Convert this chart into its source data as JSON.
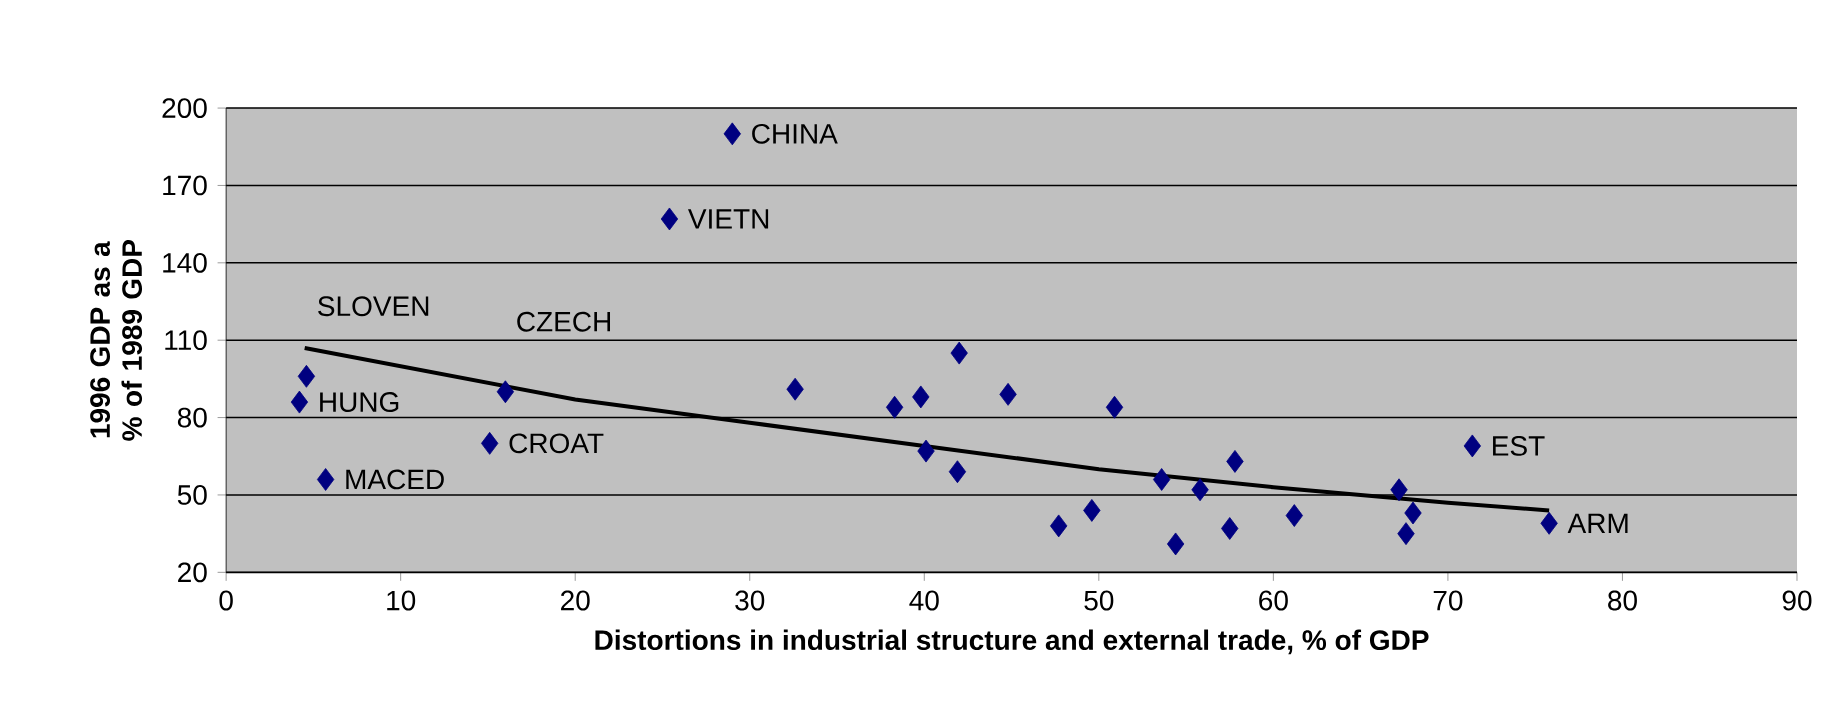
{
  "chart_data": {
    "type": "scatter",
    "xlabel": "Distortions in industrial structure and external trade, % of GDP",
    "ylabel": "1996 GDP as a % of 1989 GDP",
    "xlim": [
      0,
      90
    ],
    "xticks": [
      0,
      10,
      20,
      30,
      40,
      50,
      60,
      70,
      80,
      90
    ],
    "ylim": [
      20,
      200
    ],
    "yticks": [
      20,
      50,
      80,
      110,
      140,
      170,
      200
    ],
    "grid": "y",
    "marker": "diamond",
    "series": [
      {
        "color": "#000080",
        "x": [
          4.2,
          4.6,
          5.7,
          15.1,
          16.0,
          25.4,
          29.0,
          32.6,
          38.3,
          39.8,
          40.1,
          41.9,
          42.0,
          44.8,
          47.7,
          49.6,
          50.9,
          53.6,
          54.4,
          55.8,
          57.8,
          57.5,
          61.2,
          67.2,
          67.6,
          68.0,
          71.4,
          75.8
        ],
        "values": [
          86,
          96,
          56,
          70,
          90,
          157,
          190,
          91,
          84,
          88,
          67,
          59,
          105,
          89,
          38,
          44,
          84,
          56,
          31,
          52,
          63,
          37,
          42,
          52,
          35,
          43,
          69,
          39
        ]
      },
      {
        "type": "line",
        "marker": "none",
        "color": "#000000",
        "x": [
          4.5,
          20,
          30,
          40,
          50,
          60,
          70,
          75.8
        ],
        "values": [
          107,
          87,
          78,
          69,
          60,
          53,
          47,
          44
        ]
      }
    ],
    "annotations": [
      {
        "text": "CHINA",
        "x": 29.0,
        "y": 190
      },
      {
        "text": "VIETN",
        "x": 25.4,
        "y": 157
      },
      {
        "text": "SLOVEN",
        "x": 4.6,
        "y": 96
      },
      {
        "text": "HUNG",
        "x": 4.2,
        "y": 86
      },
      {
        "text": "CZECH",
        "x": 16.0,
        "y": 90
      },
      {
        "text": "CROAT",
        "x": 15.1,
        "y": 70
      },
      {
        "text": "MACED",
        "x": 5.7,
        "y": 56
      },
      {
        "text": "EST",
        "x": 71.4,
        "y": 69
      },
      {
        "text": "ARM",
        "x": 75.8,
        "y": 39
      }
    ]
  }
}
